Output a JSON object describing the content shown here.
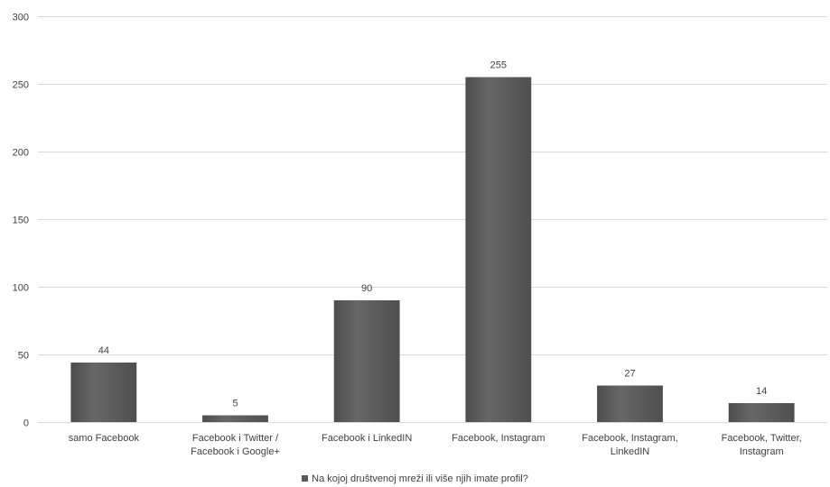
{
  "chart_data": {
    "type": "bar",
    "categories": [
      [
        "samo Facebook"
      ],
      [
        "Facebook i Twitter /",
        "Facebook i Google+"
      ],
      [
        "Facebook i LinkedIN"
      ],
      [
        "Facebook, Instagram"
      ],
      [
        "Facebook, Instagram,",
        "LinkedIN"
      ],
      [
        "Facebook, Twitter,",
        "Instagram"
      ]
    ],
    "series": [
      {
        "name": "Na kojoj društvenoj mreži ili više njih imate profil?",
        "values": [
          44,
          5,
          90,
          255,
          27,
          14
        ],
        "color": "#595959"
      }
    ],
    "ylim": [
      0,
      300
    ],
    "yticks": [
      0,
      50,
      100,
      150,
      200,
      250,
      300
    ],
    "grid": true,
    "legend_position": "bottom",
    "title": "",
    "xlabel": "",
    "ylabel": ""
  },
  "colors": {
    "bar": "#595959",
    "grid": "#d9d9d9",
    "text": "#404040"
  }
}
